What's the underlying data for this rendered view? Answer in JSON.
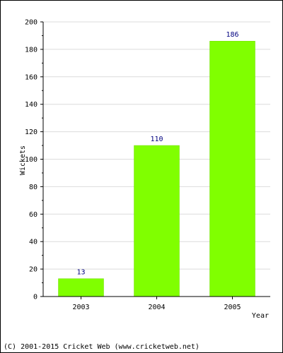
{
  "chart_data": {
    "type": "bar",
    "categories": [
      "2003",
      "2004",
      "2005"
    ],
    "values": [
      13,
      110,
      186
    ],
    "data_labels": [
      "13",
      "110",
      "186"
    ],
    "title": "",
    "xlabel": "Year",
    "ylabel": "Wickets",
    "ylim": [
      0,
      200
    ],
    "yticks": [
      0,
      20,
      40,
      60,
      80,
      100,
      120,
      140,
      160,
      180,
      200
    ],
    "grid": true,
    "legend": "none",
    "colors": {
      "bar": "#80ff00",
      "bar_edge": "#70dd00",
      "grid": "#dcdcdc",
      "data_label": "#000080",
      "axis": "#000000"
    }
  },
  "footer": {
    "copyright": "(C) 2001-2015 Cricket Web (www.cricketweb.net)"
  }
}
